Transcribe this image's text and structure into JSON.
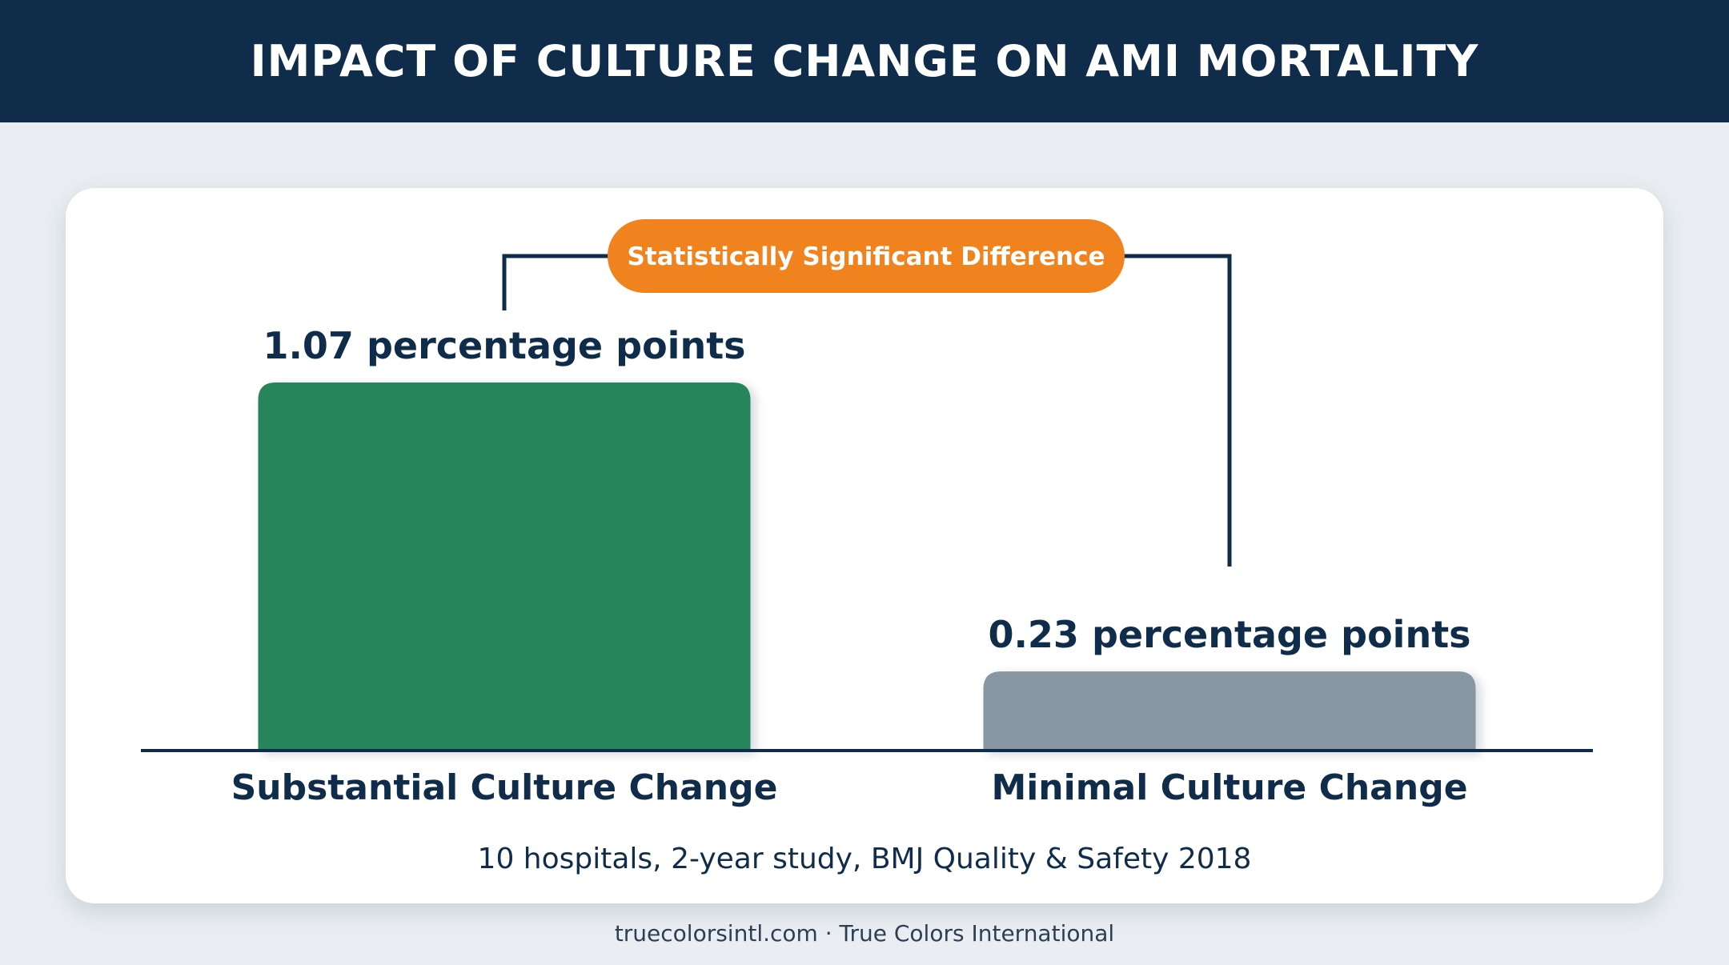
{
  "header": {
    "title": "IMPACT OF CULTURE CHANGE ON AMI MORTALITY"
  },
  "chart_data": {
    "type": "bar",
    "categories": [
      "Substantial Culture Change",
      "Minimal Culture Change"
    ],
    "values": [
      1.07,
      0.23
    ],
    "data_labels": [
      "1.07 percentage points",
      "0.23 percentage points"
    ],
    "bar_colors": [
      "#26855a",
      "#8796a0"
    ],
    "annotation": {
      "text": "Statistically Significant Difference",
      "color": "#f0831e"
    },
    "ylim": [
      0,
      1.07
    ],
    "grid": false,
    "legend": "none"
  },
  "card": {
    "caption": "10 hospitals, 2-year study, BMJ Quality & Safety 2018"
  },
  "footer": {
    "text": "truecolorsintl.com · True Colors International"
  },
  "colors": {
    "navy": "#0f2d4a",
    "background": "#eaeef2",
    "text": "#0f2d4a"
  }
}
